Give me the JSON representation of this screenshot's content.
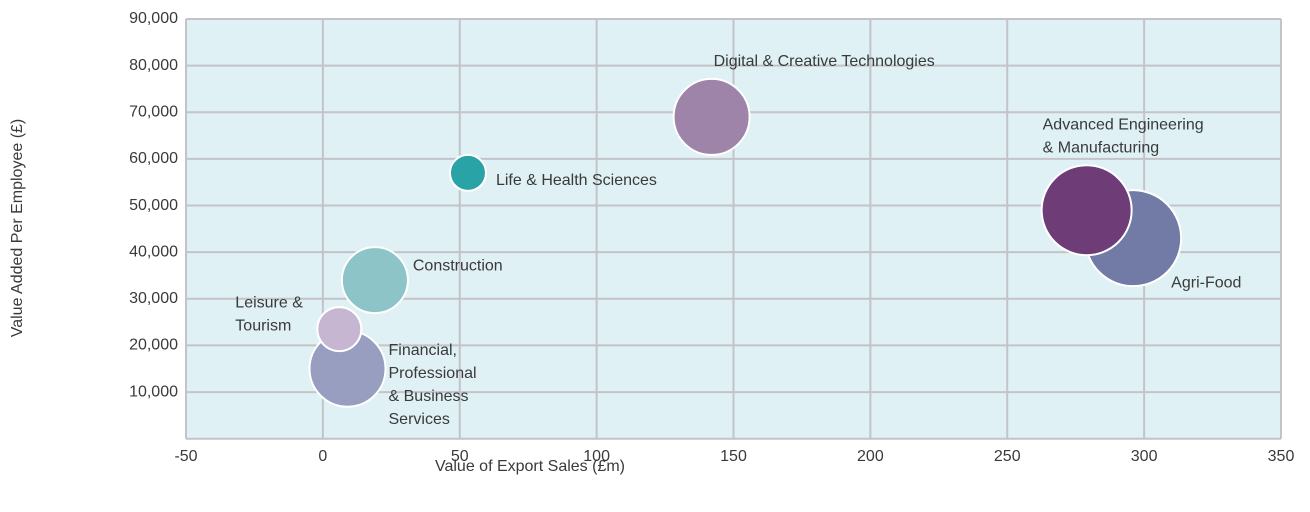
{
  "chart_data": {
    "type": "bubble",
    "x_label": "Value of Export Sales (£m)",
    "y_label": "Value Added Per Employee (£)",
    "xlim": [
      -50,
      350
    ],
    "xticks": [
      -50,
      0,
      50,
      100,
      150,
      200,
      250,
      300,
      350
    ],
    "ylim": [
      0,
      90000
    ],
    "yticks": [
      {
        "value": 10000,
        "label": "10,000"
      },
      {
        "value": 20000,
        "label": "20,000"
      },
      {
        "value": 30000,
        "label": "30,000"
      },
      {
        "value": 40000,
        "label": "40,000"
      },
      {
        "value": 50000,
        "label": "50,000"
      },
      {
        "value": 60000,
        "label": "60,000"
      },
      {
        "value": 70000,
        "label": "70,000"
      },
      {
        "value": 80000,
        "label": "80,000"
      },
      {
        "value": 90000,
        "label": "90,000"
      }
    ],
    "grid": true,
    "series": [
      {
        "name": [
          "Life & Health Sciences"
        ],
        "color": "#2aa3a6",
        "x": 53,
        "y": 57000,
        "size": 324
      },
      {
        "name": [
          "Digital & Creative Technologies"
        ],
        "color": "#9e84a8",
        "x": 142,
        "y": 69000,
        "size": 1444
      },
      {
        "name": [
          "Agri-Food"
        ],
        "color": "#727ba5",
        "x": 296,
        "y": 43000,
        "size": 2304
      },
      {
        "name": [
          "Advanced Engineering",
          "& Manufacturing"
        ],
        "color": "#6e3d78",
        "x": 279,
        "y": 49000,
        "size": 2025
      },
      {
        "name": [
          "Construction"
        ],
        "color": "#8cc4c7",
        "x": 19,
        "y": 34000,
        "size": 1089
      },
      {
        "name": [
          "Financial,",
          "Professional",
          "& Business",
          "Services"
        ],
        "color": "#979ebf",
        "x": 9,
        "y": 15000,
        "size": 1444
      },
      {
        "name": [
          "Leisure &",
          "Tourism"
        ],
        "color": "#c6b6d2",
        "x": 6,
        "y": 23500,
        "size": 484
      }
    ]
  }
}
